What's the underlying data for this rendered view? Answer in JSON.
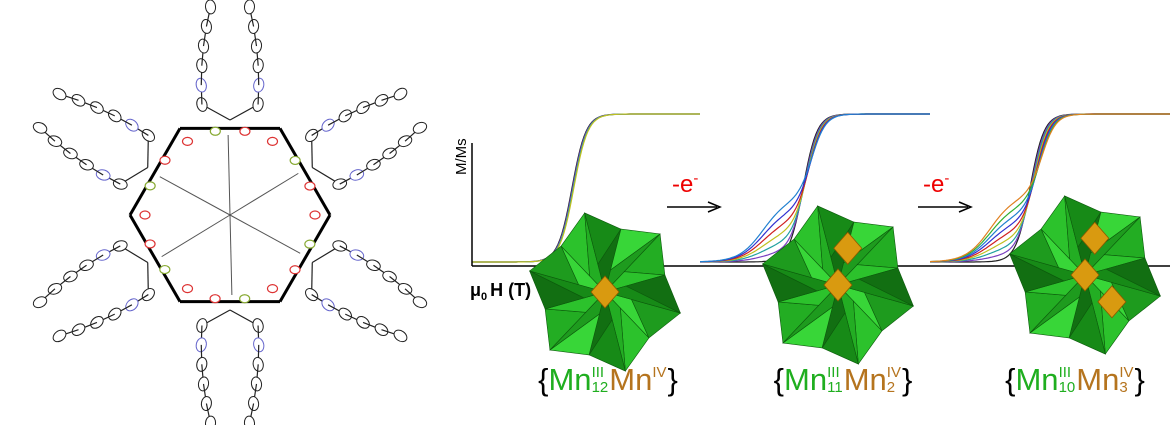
{
  "panel_b": {
    "y_axis_label": "M/Ms",
    "x_axis_label": {
      "symbol": "μ",
      "subscript": "0",
      "rest": "H (T)"
    },
    "arrows": [
      {
        "text": "-e",
        "sup": "-"
      },
      {
        "text": "-e",
        "sup": "-"
      }
    ],
    "compounds": [
      {
        "segments": [
          {
            "text": "{"
          },
          {
            "text": "Mn",
            "sup": "III",
            "sub": "12",
            "color": "#1fae1f"
          },
          {
            "text": "Mn",
            "sup": "IV",
            "color": "#b5741e"
          },
          {
            "text": "}"
          }
        ]
      },
      {
        "segments": [
          {
            "text": "{"
          },
          {
            "text": "Mn",
            "sup": "III",
            "sub": "11",
            "color": "#1fae1f"
          },
          {
            "text": "Mn",
            "sup": "IV",
            "sub": "2",
            "color": "#b5741e"
          },
          {
            "text": "}"
          }
        ]
      },
      {
        "segments": [
          {
            "text": "{"
          },
          {
            "text": "Mn",
            "sup": "III",
            "sub": "10",
            "color": "#1fae1f"
          },
          {
            "text": "Mn",
            "sup": "IV",
            "sub": "3",
            "color": "#b5741e"
          },
          {
            "text": "}"
          }
        ]
      }
    ]
  }
}
